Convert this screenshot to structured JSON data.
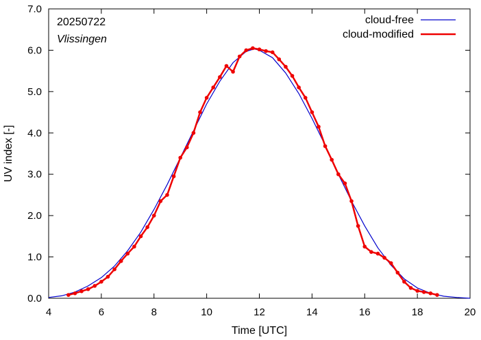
{
  "chart_data": {
    "type": "line",
    "annotations": {
      "date": "20250722",
      "station": "Vlissingen"
    },
    "xlabel": "Time  [UTC]",
    "ylabel": "UV index  [-]",
    "xlim": [
      4,
      20
    ],
    "ylim": [
      0,
      7
    ],
    "xticks": [
      4,
      6,
      8,
      10,
      12,
      14,
      16,
      18,
      20
    ],
    "yticks": [
      "0.0",
      "1.0",
      "2.0",
      "3.0",
      "4.0",
      "5.0",
      "6.0",
      "7.0"
    ],
    "grid": false,
    "legend_position": "top-right",
    "series": [
      {
        "name": "cloud-free",
        "color": "#0000cc",
        "style": "line",
        "x": [
          4.0,
          4.5,
          5.0,
          5.5,
          6.0,
          6.5,
          7.0,
          7.5,
          8.0,
          8.5,
          9.0,
          9.5,
          10.0,
          10.5,
          11.0,
          11.5,
          11.8,
          12.0,
          12.5,
          13.0,
          13.5,
          14.0,
          14.5,
          15.0,
          15.5,
          16.0,
          16.5,
          17.0,
          17.5,
          18.0,
          18.5,
          19.0,
          19.5,
          20.0
        ],
        "y": [
          0.02,
          0.06,
          0.15,
          0.3,
          0.5,
          0.78,
          1.15,
          1.6,
          2.15,
          2.75,
          3.4,
          4.05,
          4.7,
          5.25,
          5.7,
          5.97,
          6.03,
          6.0,
          5.82,
          5.45,
          4.95,
          4.35,
          3.7,
          3.0,
          2.35,
          1.75,
          1.22,
          0.8,
          0.47,
          0.25,
          0.12,
          0.05,
          0.02,
          0.0
        ]
      },
      {
        "name": "cloud-modified",
        "color": "#ee0000",
        "style": "line+points",
        "x": [
          4.75,
          5.0,
          5.25,
          5.5,
          5.75,
          6.0,
          6.25,
          6.5,
          6.75,
          7.0,
          7.25,
          7.5,
          7.75,
          8.0,
          8.25,
          8.5,
          8.75,
          9.0,
          9.25,
          9.5,
          9.75,
          10.0,
          10.25,
          10.5,
          10.75,
          11.0,
          11.25,
          11.5,
          11.75,
          12.0,
          12.25,
          12.5,
          12.75,
          13.0,
          13.25,
          13.5,
          13.75,
          14.0,
          14.25,
          14.5,
          14.75,
          15.0,
          15.25,
          15.5,
          15.75,
          16.0,
          16.25,
          16.5,
          16.75,
          17.0,
          17.25,
          17.5,
          17.75,
          18.0,
          18.25,
          18.5,
          18.75
        ],
        "y": [
          0.08,
          0.12,
          0.17,
          0.22,
          0.3,
          0.4,
          0.52,
          0.7,
          0.9,
          1.08,
          1.25,
          1.5,
          1.72,
          2.0,
          2.35,
          2.5,
          2.95,
          3.4,
          3.65,
          4.0,
          4.5,
          4.85,
          5.1,
          5.35,
          5.62,
          5.48,
          5.85,
          6.0,
          6.05,
          6.02,
          5.98,
          5.95,
          5.78,
          5.6,
          5.38,
          5.1,
          4.85,
          4.5,
          4.15,
          3.68,
          3.35,
          3.0,
          2.78,
          2.35,
          1.75,
          1.25,
          1.12,
          1.08,
          0.98,
          0.85,
          0.62,
          0.4,
          0.25,
          0.18,
          0.15,
          0.12,
          0.08
        ]
      }
    ]
  }
}
